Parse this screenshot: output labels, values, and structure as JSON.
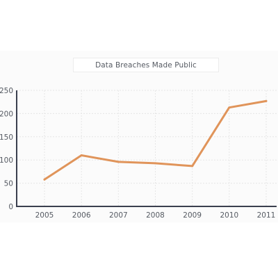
{
  "chart_data": {
    "type": "line",
    "title": "Data Breaches Made Public",
    "xlabel": "",
    "ylabel": "",
    "categories": [
      "2005",
      "2006",
      "2007",
      "2008",
      "2009",
      "2010",
      "2011"
    ],
    "series": [
      {
        "values": [
          58,
          110,
          96,
          93,
          87,
          213,
          227
        ]
      }
    ],
    "ylim": [
      0,
      250
    ],
    "yticks": [
      0,
      50,
      100,
      150,
      200,
      250
    ],
    "grid": true,
    "legend": "none",
    "colors": {
      "line": "#e0945a",
      "grid": "#e6e6e6",
      "axis": "#3a3f4e",
      "text": "#555a62"
    }
  }
}
